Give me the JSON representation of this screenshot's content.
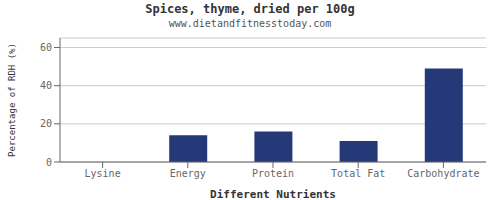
{
  "chart_data": {
    "type": "bar",
    "title": "Spices, thyme, dried per 100g",
    "subtitle": "www.dietandfitnesstoday.com",
    "xlabel": "Different Nutrients",
    "ylabel": "Percentage of RDH (%)",
    "categories": [
      "Lysine",
      "Energy",
      "Protein",
      "Total Fat",
      "Carbohydrate"
    ],
    "values": [
      0,
      14,
      16,
      11,
      49
    ],
    "color": "#253878",
    "ylim": [
      0,
      65
    ],
    "yticks": [
      0,
      20,
      40,
      60
    ],
    "grid": true
  }
}
